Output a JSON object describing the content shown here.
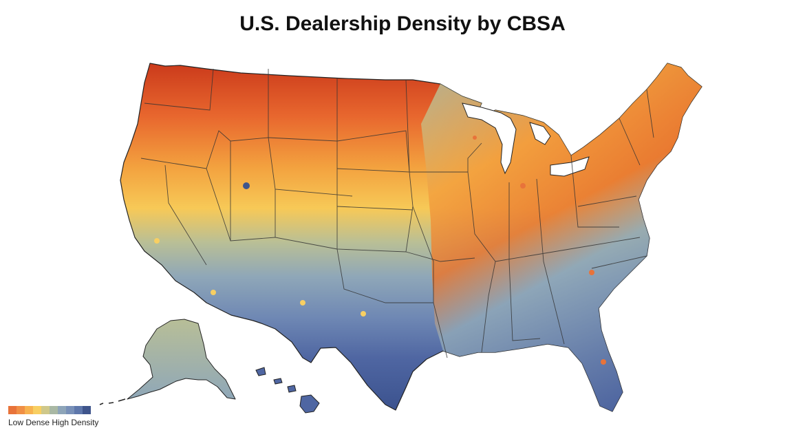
{
  "title": "U.S. Dealership Density by CBSA",
  "legend": {
    "label": "Low Dense High Density",
    "colors": [
      "#e8733a",
      "#f08f45",
      "#f7b24f",
      "#f8cf62",
      "#cfc88a",
      "#a9b8a4",
      "#8ea5b9",
      "#7890b8",
      "#5e77ab",
      "#3f558c"
    ]
  },
  "map": {
    "regions": [
      "contiguous-us",
      "alaska",
      "hawaii"
    ],
    "gradient_stops": [
      "#cc3c1c",
      "#e8672e",
      "#f3a23f",
      "#f7c957",
      "#b9bf96",
      "#8fa7b8",
      "#6f88b4",
      "#4f66a2",
      "#3d5490"
    ]
  }
}
